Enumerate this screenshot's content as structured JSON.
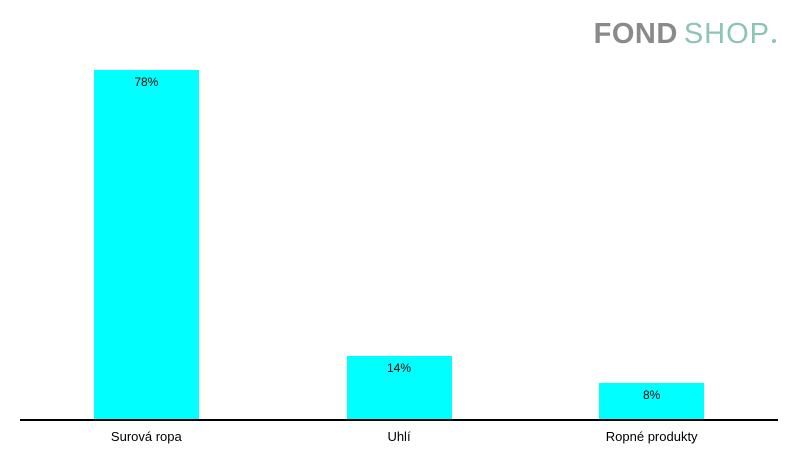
{
  "logo": {
    "part1": "FOND",
    "part2": "SHOP",
    "part1_color": "#8a8a8a",
    "part2_color": "#8bc6b2"
  },
  "chart_data": {
    "type": "bar",
    "categories": [
      "Surová ropa",
      "Uhlí",
      "Ropné produkty"
    ],
    "values": [
      78,
      14,
      8
    ],
    "data_labels": [
      "78%",
      "14%",
      "8%"
    ],
    "title": "",
    "xlabel": "",
    "ylabel": "",
    "ylim": [
      0,
      80
    ],
    "grid": false,
    "legend": false,
    "bar_color": "#00ffff",
    "axis_color": "#000000",
    "label_color": "#000000"
  }
}
